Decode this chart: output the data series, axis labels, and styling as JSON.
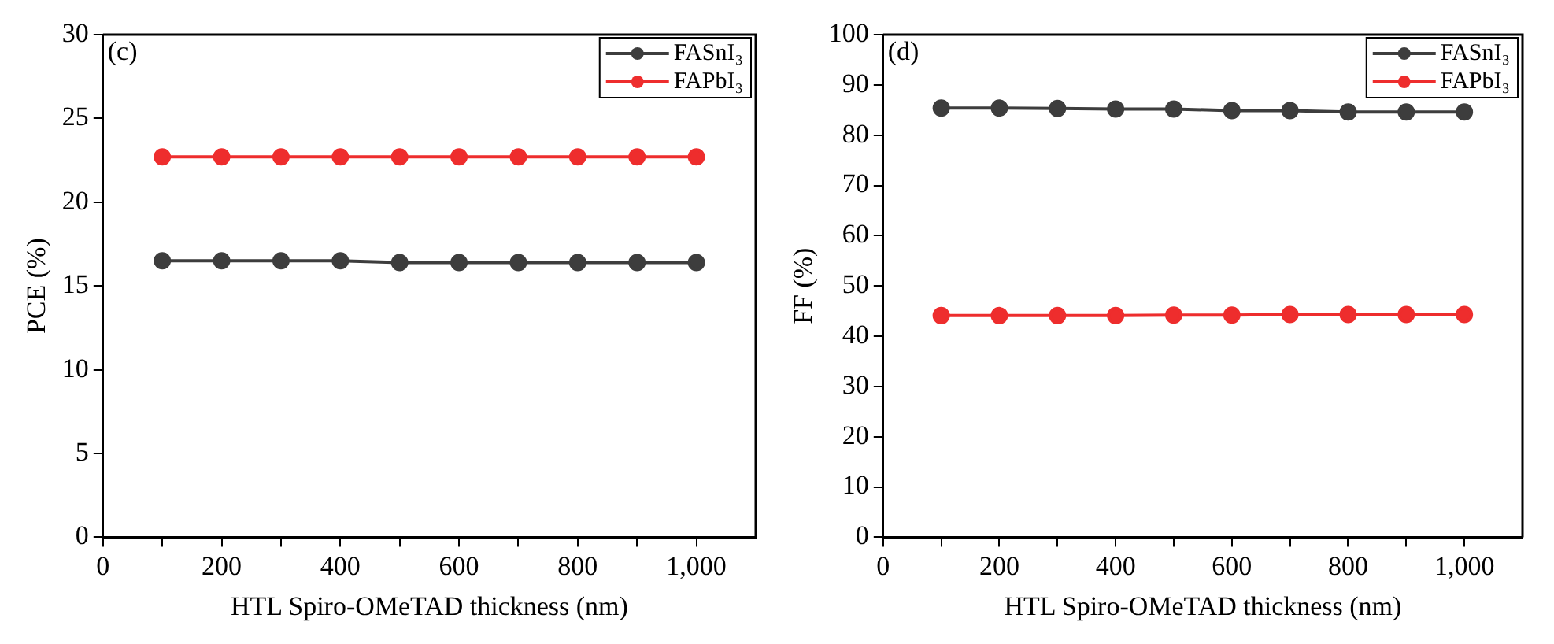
{
  "chart_data": [
    {
      "type": "line",
      "annotations": [
        "(c)"
      ],
      "xlabel": "HTL Spiro-OMeTAD thickness (nm)",
      "ylabel": "PCE (%)",
      "x": [
        100,
        200,
        300,
        400,
        500,
        600,
        700,
        800,
        900,
        1000
      ],
      "series": [
        {
          "name": "FASnI₃",
          "color": "#3d3d3d",
          "values": [
            16.5,
            16.5,
            16.5,
            16.5,
            16.4,
            16.4,
            16.4,
            16.4,
            16.4,
            16.4
          ]
        },
        {
          "name": "FAPbI₃",
          "color": "#ee2d2d",
          "values": [
            22.7,
            22.7,
            22.7,
            22.7,
            22.7,
            22.7,
            22.7,
            22.7,
            22.7,
            22.7
          ]
        }
      ],
      "xlim": [
        0,
        1100
      ],
      "xticks": [
        0,
        {
          "value": 100,
          "label": null
        },
        200,
        {
          "value": 300,
          "label": null
        },
        400,
        {
          "value": 500,
          "label": null
        },
        600,
        {
          "value": 700,
          "label": null
        },
        800,
        {
          "value": 900,
          "label": null
        },
        {
          "value": 1000,
          "label": "1,000"
        }
      ],
      "ylim": [
        0,
        30
      ],
      "yticks": [
        0,
        5,
        10,
        15,
        20,
        25,
        30
      ],
      "grid": false,
      "legend": "top right",
      "marker": "circle",
      "line_style": "solid"
    },
    {
      "type": "line",
      "annotations": [
        "(d)"
      ],
      "xlabel": "HTL Spiro-OMeTAD thickness (nm)",
      "ylabel": "FF (%)",
      "x": [
        100,
        200,
        300,
        400,
        500,
        600,
        700,
        800,
        900,
        1000
      ],
      "series": [
        {
          "name": "FASnI₃",
          "color": "#3d3d3d",
          "values": [
            85.4,
            85.4,
            85.3,
            85.2,
            85.2,
            84.9,
            84.9,
            84.6,
            84.6,
            84.6
          ]
        },
        {
          "name": "FAPbI₃",
          "color": "#ee2d2d",
          "values": [
            44.1,
            44.1,
            44.1,
            44.1,
            44.2,
            44.2,
            44.3,
            44.3,
            44.3,
            44.3
          ]
        }
      ],
      "xlim": [
        0,
        1100
      ],
      "xticks": [
        0,
        {
          "value": 100,
          "label": null
        },
        200,
        {
          "value": 300,
          "label": null
        },
        400,
        {
          "value": 500,
          "label": null
        },
        600,
        {
          "value": 700,
          "label": null
        },
        800,
        {
          "value": 900,
          "label": null
        },
        {
          "value": 1000,
          "label": "1,000"
        }
      ],
      "ylim": [
        0,
        100
      ],
      "yticks": [
        0,
        10,
        20,
        30,
        40,
        50,
        60,
        70,
        80,
        90,
        100
      ],
      "grid": false,
      "legend": "top right",
      "marker": "circle",
      "line_style": "solid"
    }
  ]
}
